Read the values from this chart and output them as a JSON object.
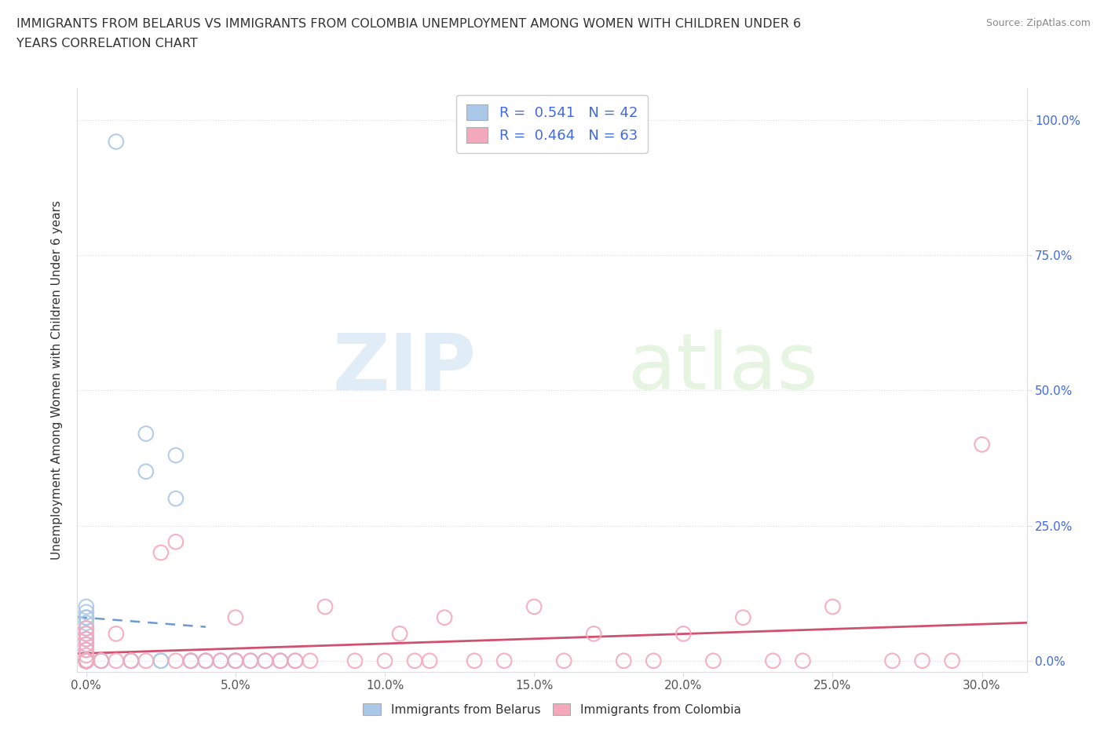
{
  "title_line1": "IMMIGRANTS FROM BELARUS VS IMMIGRANTS FROM COLOMBIA UNEMPLOYMENT AMONG WOMEN WITH CHILDREN UNDER 6",
  "title_line2": "YEARS CORRELATION CHART",
  "source": "Source: ZipAtlas.com",
  "xlabel_ticks": [
    "0.0%",
    "5.0%",
    "10.0%",
    "15.0%",
    "20.0%",
    "25.0%",
    "30.0%"
  ],
  "xlabel_vals": [
    0.0,
    0.05,
    0.1,
    0.15,
    0.2,
    0.25,
    0.3
  ],
  "ylabel_ticks": [
    "0.0%",
    "25.0%",
    "50.0%",
    "75.0%",
    "100.0%"
  ],
  "ylabel_vals": [
    0.0,
    0.25,
    0.5,
    0.75,
    1.0
  ],
  "xlim": [
    -0.003,
    0.315
  ],
  "ylim": [
    -0.02,
    1.06
  ],
  "legend_r1": "R =  0.541   N = 42",
  "legend_r2": "R =  0.464   N = 63",
  "color_belarus": "#aac8e8",
  "color_colombia": "#f5a8bc",
  "color_trendline_belarus": "#5588cc",
  "color_trendline_colombia": "#d05070",
  "watermark_zip": "ZIP",
  "watermark_atlas": "atlas",
  "ylabel": "Unemployment Among Women with Children Under 6 years",
  "legend_label_belarus": "Immigrants from Belarus",
  "legend_label_colombia": "Immigrants from Colombia",
  "axis_color": "#4169E1",
  "tick_color": "#555555",
  "grid_color": "#dddddd",
  "belarus_x": [
    0.0,
    0.0,
    0.0,
    0.0,
    0.0,
    0.0,
    0.0,
    0.0,
    0.0,
    0.0,
    0.0,
    0.0,
    0.0,
    0.0,
    0.0,
    0.0,
    0.0,
    0.0,
    0.0,
    0.0,
    0.005,
    0.005,
    0.01,
    0.015,
    0.015,
    0.02,
    0.02,
    0.025,
    0.025,
    0.03,
    0.03,
    0.035,
    0.035,
    0.04,
    0.04,
    0.045,
    0.05,
    0.05,
    0.055,
    0.06,
    0.065,
    0.07
  ],
  "belarus_y": [
    0.0,
    0.0,
    0.0,
    0.0,
    0.0,
    0.0,
    0.0,
    0.0,
    0.0,
    0.0,
    0.02,
    0.03,
    0.04,
    0.05,
    0.06,
    0.07,
    0.08,
    0.08,
    0.09,
    0.1,
    0.0,
    0.0,
    0.96,
    0.0,
    0.0,
    0.35,
    0.42,
    0.0,
    0.0,
    0.3,
    0.38,
    0.0,
    0.0,
    0.0,
    0.0,
    0.0,
    0.0,
    0.0,
    0.0,
    0.0,
    0.0,
    0.0
  ],
  "colombia_x": [
    0.0,
    0.0,
    0.0,
    0.0,
    0.0,
    0.0,
    0.0,
    0.0,
    0.0,
    0.0,
    0.0,
    0.0,
    0.0,
    0.0,
    0.0,
    0.0,
    0.0,
    0.0,
    0.0,
    0.0,
    0.0,
    0.005,
    0.01,
    0.01,
    0.015,
    0.02,
    0.025,
    0.03,
    0.03,
    0.035,
    0.04,
    0.045,
    0.05,
    0.05,
    0.055,
    0.06,
    0.065,
    0.07,
    0.075,
    0.08,
    0.09,
    0.1,
    0.105,
    0.11,
    0.115,
    0.12,
    0.13,
    0.14,
    0.15,
    0.16,
    0.17,
    0.18,
    0.19,
    0.2,
    0.21,
    0.22,
    0.23,
    0.24,
    0.25,
    0.27,
    0.28,
    0.29,
    0.3
  ],
  "colombia_y": [
    0.0,
    0.0,
    0.0,
    0.0,
    0.0,
    0.0,
    0.0,
    0.0,
    0.0,
    0.0,
    0.0,
    0.0,
    0.0,
    0.0,
    0.0,
    0.01,
    0.02,
    0.03,
    0.04,
    0.05,
    0.06,
    0.0,
    0.0,
    0.05,
    0.0,
    0.0,
    0.2,
    0.0,
    0.22,
    0.0,
    0.0,
    0.0,
    0.0,
    0.08,
    0.0,
    0.0,
    0.0,
    0.0,
    0.0,
    0.1,
    0.0,
    0.0,
    0.05,
    0.0,
    0.0,
    0.08,
    0.0,
    0.0,
    0.1,
    0.0,
    0.05,
    0.0,
    0.0,
    0.05,
    0.0,
    0.08,
    0.0,
    0.0,
    0.1,
    0.0,
    0.0,
    0.0,
    0.4
  ]
}
